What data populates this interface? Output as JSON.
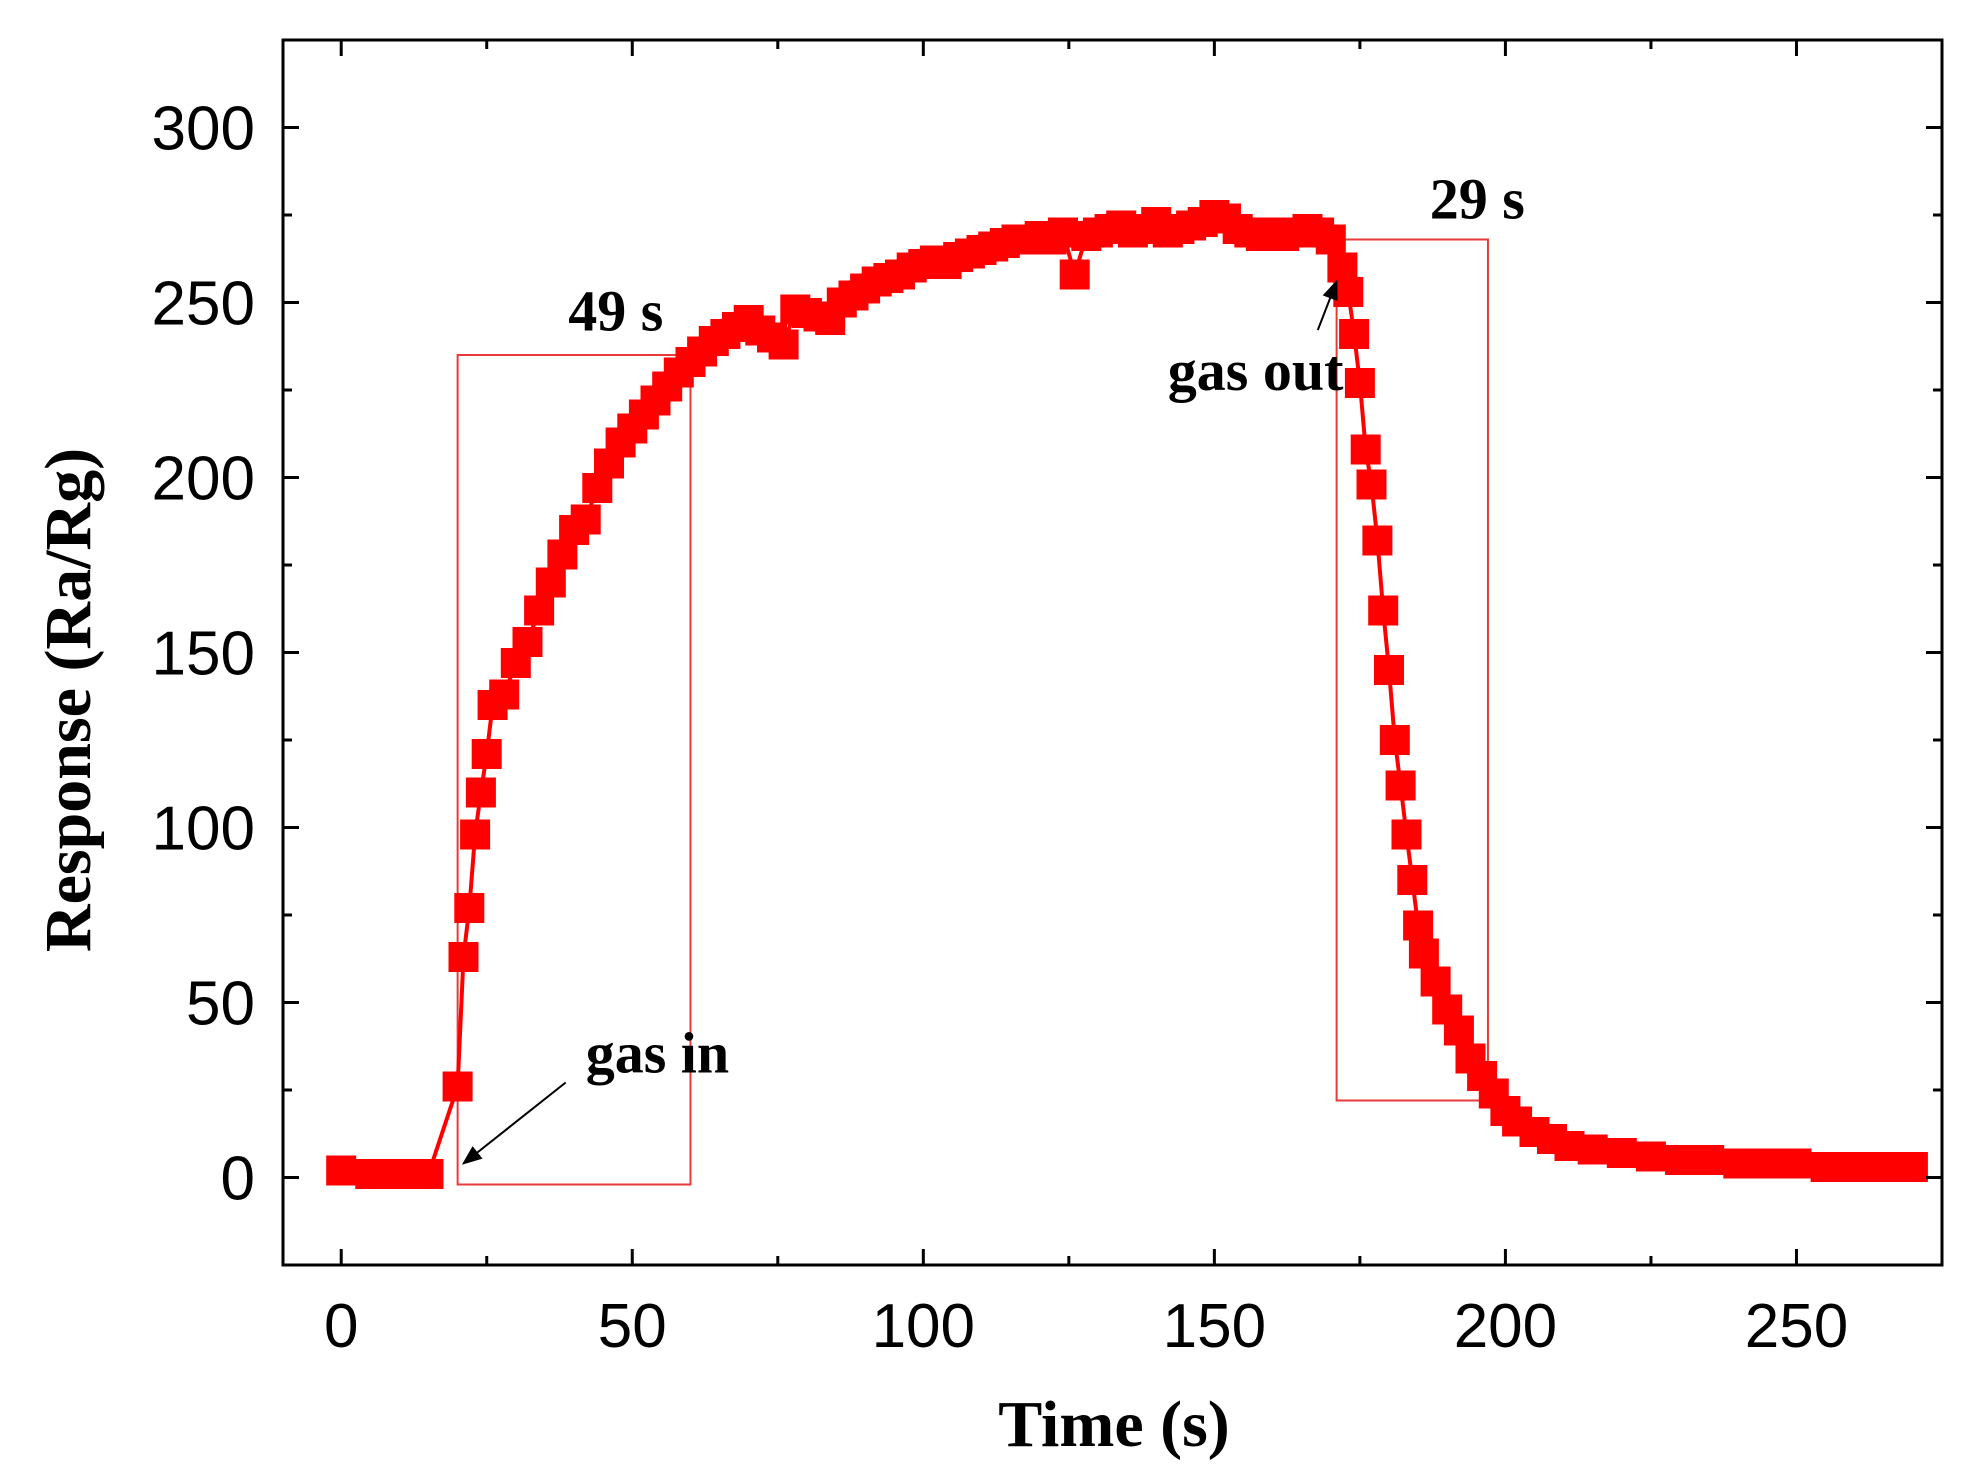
{
  "chart_data": {
    "type": "scatter",
    "title": "",
    "xlabel": "Time (s)",
    "ylabel": "Response (Ra/Rg)",
    "xlim": [
      -10,
      275
    ],
    "ylim": [
      -25,
      325
    ],
    "xticks": [
      0,
      50,
      100,
      150,
      200,
      250
    ],
    "yticks": [
      0,
      50,
      100,
      150,
      200,
      250,
      300
    ],
    "grid": false,
    "legend": "none",
    "colors": {
      "series": "#ff0000",
      "box": "#e83a3a",
      "arrow": "#000000"
    },
    "series": [
      {
        "name": "Response",
        "marker": "square",
        "x": [
          0,
          5,
          10,
          15,
          20,
          21,
          22,
          23,
          24,
          25,
          26,
          28,
          30,
          32,
          34,
          36,
          38,
          40,
          42,
          44,
          46,
          48,
          50,
          52,
          54,
          56,
          58,
          60,
          62,
          64,
          66,
          68,
          70,
          72,
          74,
          76,
          78,
          80,
          82,
          84,
          86,
          88,
          90,
          92,
          94,
          96,
          98,
          100,
          102,
          104,
          106,
          108,
          110,
          112,
          114,
          116,
          118,
          120,
          122,
          124,
          126,
          128,
          130,
          132,
          134,
          136,
          138,
          140,
          142,
          144,
          146,
          148,
          150,
          152,
          154,
          156,
          158,
          160,
          162,
          164,
          166,
          168,
          170,
          172,
          173,
          174,
          175,
          176,
          177,
          178,
          179,
          180,
          181,
          182,
          183,
          184,
          185,
          186,
          188,
          190,
          192,
          194,
          196,
          198,
          200,
          202,
          205,
          208,
          211,
          215,
          220,
          225,
          230,
          235,
          240,
          245,
          250,
          255,
          260,
          265,
          270
        ],
        "y": [
          2,
          1,
          1,
          1,
          26,
          63,
          77,
          98,
          110,
          121,
          135,
          138,
          147,
          153,
          162,
          170,
          178,
          185,
          188,
          197,
          204,
          210,
          214,
          218,
          222,
          226,
          230,
          233,
          236,
          239,
          241,
          243,
          245,
          242,
          240,
          238,
          248,
          247,
          246,
          245,
          250,
          252,
          254,
          256,
          257,
          258,
          260,
          261,
          262,
          261,
          263,
          264,
          265,
          266,
          267,
          268,
          268,
          269,
          268,
          270,
          258,
          269,
          270,
          271,
          272,
          270,
          271,
          273,
          270,
          271,
          272,
          273,
          275,
          274,
          271,
          270,
          269,
          270,
          269,
          270,
          271,
          270,
          268,
          260,
          253,
          241,
          227,
          208,
          198,
          182,
          162,
          145,
          125,
          112,
          98,
          85,
          72,
          64,
          56,
          48,
          42,
          34,
          29,
          24,
          19,
          16,
          13,
          11,
          9,
          8,
          7,
          6,
          5,
          5,
          4,
          4,
          4,
          3,
          3,
          3,
          3
        ]
      }
    ],
    "annotations": [
      {
        "text": "49 s",
        "x": 39,
        "y": 242,
        "bracket": {
          "x0": 20,
          "x1": 60,
          "y0": -2,
          "y1": 235
        }
      },
      {
        "text": "29 s",
        "x": 187,
        "y": 274,
        "bracket": {
          "x0": 171,
          "x1": 197,
          "y0": 22,
          "y1": 268
        }
      },
      {
        "text": "gas in",
        "x": 42,
        "y": 30,
        "arrow_to": [
          21,
          4
        ]
      },
      {
        "text": "gas out",
        "x": 142,
        "y": 225,
        "arrow_to": [
          171,
          256
        ]
      }
    ]
  }
}
